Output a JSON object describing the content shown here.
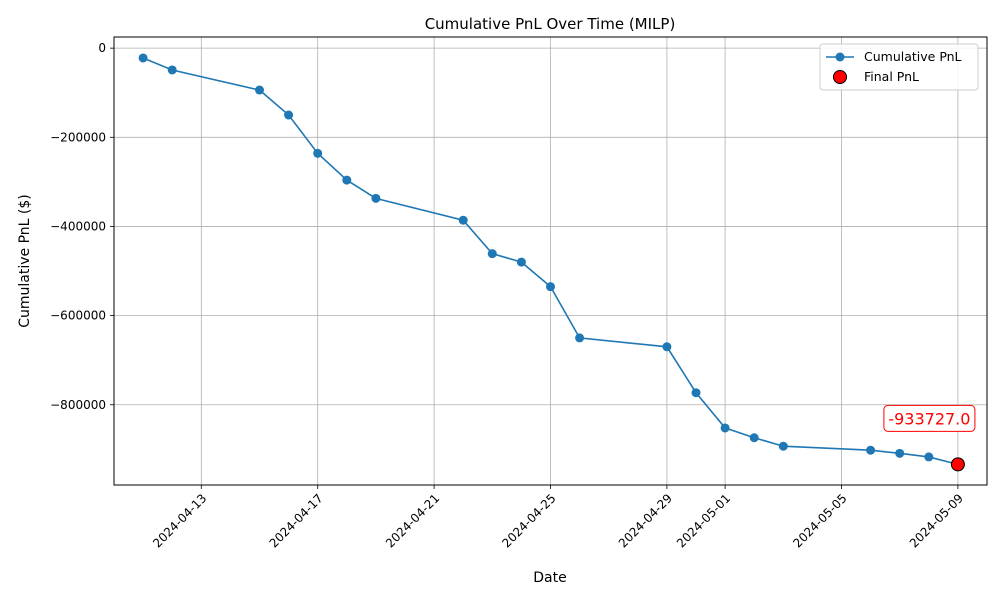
{
  "chart_data": {
    "type": "line",
    "title": "Cumulative PnL Over Time (MILP)",
    "xlabel": "Date",
    "ylabel": "Cumulative PnL ($)",
    "x_axis_type": "date",
    "xlim": [
      "2024-04-10",
      "2024-05-10"
    ],
    "ylim": [
      -980000,
      25000
    ],
    "grid": true,
    "legend_position": "top-right",
    "x_ticks": [
      "2024-04-13",
      "2024-04-17",
      "2024-04-21",
      "2024-04-25",
      "2024-04-29",
      "2024-05-01",
      "2024-05-05",
      "2024-05-09"
    ],
    "y_ticks": [
      0,
      -200000,
      -400000,
      -600000,
      -800000
    ],
    "y_tick_labels": [
      "0",
      "−200000",
      "−400000",
      "−600000",
      "−800000"
    ],
    "series": [
      {
        "name": "Cumulative PnL",
        "color": "#1f77b4",
        "marker": "circle",
        "x": [
          "2024-04-11",
          "2024-04-12",
          "2024-04-15",
          "2024-04-16",
          "2024-04-17",
          "2024-04-18",
          "2024-04-19",
          "2024-04-22",
          "2024-04-23",
          "2024-04-24",
          "2024-04-25",
          "2024-04-26",
          "2024-04-29",
          "2024-04-30",
          "2024-05-01",
          "2024-05-02",
          "2024-05-03",
          "2024-05-06",
          "2024-05-07",
          "2024-05-08",
          "2024-05-09"
        ],
        "y": [
          -22000,
          -49000,
          -94000,
          -150000,
          -236000,
          -296000,
          -337000,
          -386000,
          -461000,
          -480000,
          -535000,
          -650000,
          -670000,
          -773000,
          -852000,
          -874000,
          -893000,
          -902000,
          -909000,
          -917000,
          -933727
        ]
      },
      {
        "name": "Final PnL",
        "color": "#ff0000",
        "marker": "circle",
        "x": [
          "2024-05-09"
        ],
        "y": [
          -933727.0
        ]
      }
    ],
    "annotations": [
      {
        "text": "-933727.0",
        "x": "2024-05-09",
        "y": -933727.0,
        "color": "#ff0000"
      }
    ]
  }
}
